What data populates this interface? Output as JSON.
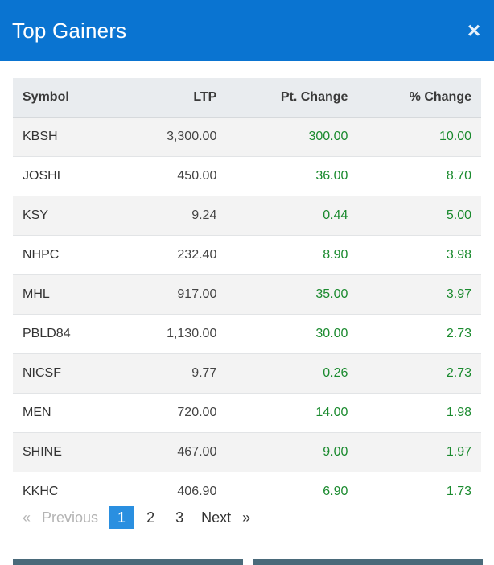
{
  "modal": {
    "title": "Top Gainers",
    "close_icon": "×"
  },
  "table": {
    "headers": {
      "symbol": "Symbol",
      "ltp": "LTP",
      "pt_change": "Pt. Change",
      "pct_change": "% Change"
    },
    "rows": [
      {
        "symbol": "KBSH",
        "ltp": "3,300.00",
        "pt_change": "300.00",
        "pct_change": "10.00"
      },
      {
        "symbol": "JOSHI",
        "ltp": "450.00",
        "pt_change": "36.00",
        "pct_change": "8.70"
      },
      {
        "symbol": "KSY",
        "ltp": "9.24",
        "pt_change": "0.44",
        "pct_change": "5.00"
      },
      {
        "symbol": "NHPC",
        "ltp": "232.40",
        "pt_change": "8.90",
        "pct_change": "3.98"
      },
      {
        "symbol": "MHL",
        "ltp": "917.00",
        "pt_change": "35.00",
        "pct_change": "3.97"
      },
      {
        "symbol": "PBLD84",
        "ltp": "1,130.00",
        "pt_change": "30.00",
        "pct_change": "2.73"
      },
      {
        "symbol": "NICSF",
        "ltp": "9.77",
        "pt_change": "0.26",
        "pct_change": "2.73"
      },
      {
        "symbol": "MEN",
        "ltp": "720.00",
        "pt_change": "14.00",
        "pct_change": "1.98"
      },
      {
        "symbol": "SHINE",
        "ltp": "467.00",
        "pt_change": "9.00",
        "pct_change": "1.97"
      },
      {
        "symbol": "KKHC",
        "ltp": "406.90",
        "pt_change": "6.90",
        "pct_change": "1.73"
      }
    ]
  },
  "pagination": {
    "prev_arrow": "«",
    "prev_label": "Previous",
    "pages": [
      "1",
      "2",
      "3"
    ],
    "active_page": "1",
    "next_label": "Next",
    "next_arrow": "»"
  },
  "colors": {
    "header_bg": "#0a74d1",
    "gain_green": "#1a8a2e",
    "active_page_bg": "#2a8fe0"
  }
}
